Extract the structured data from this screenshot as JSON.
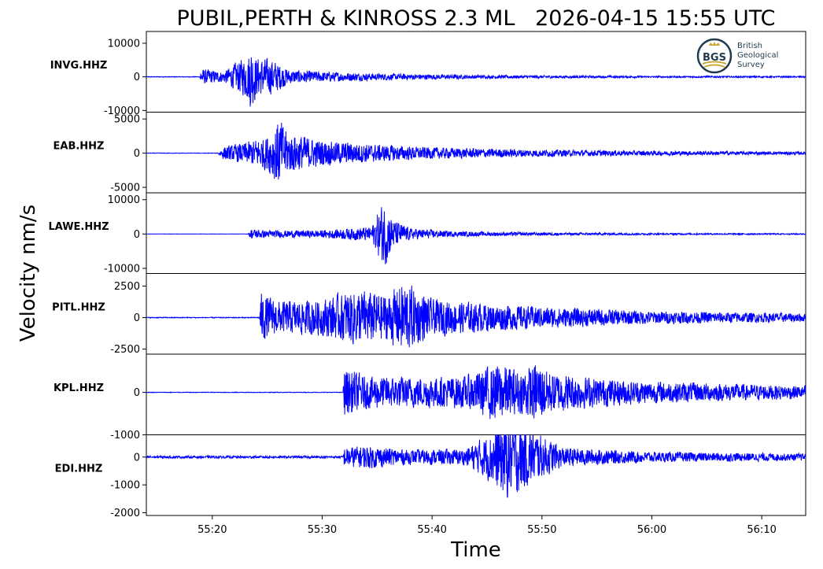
{
  "title": "PUBIL,PERTH & KINROSS 2.3 ML   2026-04-15 15:55 UTC",
  "ylabel": "Velocity nm/s",
  "xlabel": "Time",
  "logo": {
    "abbr": "BGS",
    "line1": "British",
    "line2": "Geological",
    "line3": "Survey"
  },
  "colors": {
    "trace": "#0000ff",
    "axes": "#000000",
    "logo": "#1f3b4d",
    "logo_accent": "#c9a227"
  },
  "chart_data": {
    "type": "line",
    "x_ticks": [
      "55:20",
      "55:30",
      "55:40",
      "55:50",
      "56:00",
      "56:10"
    ],
    "x_tick_seconds": [
      20,
      30,
      40,
      50,
      60,
      70
    ],
    "x_range_seconds": [
      14,
      74
    ],
    "panels": [
      {
        "station": "INVG.HHZ",
        "ylim": [
          -10500,
          13500
        ],
        "yticks": [
          10000,
          0,
          -10000
        ],
        "ytick_labels": [
          "10000",
          "0",
          "-10000"
        ],
        "onset_seconds": 23.3,
        "noise": 120,
        "envelope": [
          [
            18.9,
            2800
          ],
          [
            19.5,
            2600
          ],
          [
            21,
            1800
          ],
          [
            23.3,
            8000
          ],
          [
            23.5,
            12400
          ],
          [
            24,
            7000
          ],
          [
            25.5,
            6000
          ],
          [
            27,
            2500
          ],
          [
            30,
            1800
          ],
          [
            35,
            1200
          ],
          [
            45,
            600
          ],
          [
            60,
            300
          ],
          [
            74,
            250
          ]
        ]
      },
      {
        "station": "EAB.HHZ",
        "ylim": [
          -5800,
          6000
        ],
        "yticks": [
          5000,
          0,
          -5000
        ],
        "ytick_labels": [
          "5000",
          "0",
          "-5000"
        ],
        "noise": 40,
        "envelope": [
          [
            20.6,
            400
          ],
          [
            21,
            1100
          ],
          [
            23,
            1800
          ],
          [
            25,
            3000
          ],
          [
            26.1,
            5800
          ],
          [
            27,
            3500
          ],
          [
            30,
            2200
          ],
          [
            35,
            1500
          ],
          [
            40,
            1000
          ],
          [
            50,
            600
          ],
          [
            60,
            400
          ],
          [
            74,
            250
          ]
        ]
      },
      {
        "station": "LAWE.HHZ",
        "ylim": [
          -11500,
          12000
        ],
        "yticks": [
          10000,
          0,
          -10000
        ],
        "ytick_labels": [
          "10000",
          "0",
          "-10000"
        ],
        "noise": 40,
        "envelope": [
          [
            23.3,
            300
          ],
          [
            23.5,
            1800
          ],
          [
            25,
            1200
          ],
          [
            30,
            1300
          ],
          [
            34.5,
            2500
          ],
          [
            35.6,
            11500
          ],
          [
            36.5,
            5000
          ],
          [
            38,
            2000
          ],
          [
            42,
            900
          ],
          [
            50,
            500
          ],
          [
            60,
            300
          ],
          [
            74,
            200
          ]
        ]
      },
      {
        "station": "PITL.HHZ",
        "ylim": [
          -2900,
          3500
        ],
        "yticks": [
          2500,
          0,
          -2500
        ],
        "ytick_labels": [
          "2500",
          "0",
          "-2500"
        ],
        "noise": 40,
        "envelope": [
          [
            24.3,
            100
          ],
          [
            24.4,
            2300
          ],
          [
            26,
            1500
          ],
          [
            30,
            1700
          ],
          [
            33,
            2600
          ],
          [
            36,
            2200
          ],
          [
            37.5,
            3400
          ],
          [
            40,
            1700
          ],
          [
            45,
            1300
          ],
          [
            50,
            1000
          ],
          [
            60,
            600
          ],
          [
            74,
            400
          ]
        ]
      },
      {
        "station": "KPL.HHZ",
        "ylim": [
          -1000,
          900
        ],
        "yticks": [
          0,
          -1000
        ],
        "ytick_labels": [
          "0",
          "-1000"
        ],
        "noise": 8,
        "envelope": [
          [
            31.9,
            40
          ],
          [
            32,
            700
          ],
          [
            34,
            450
          ],
          [
            38,
            420
          ],
          [
            43,
            450
          ],
          [
            46,
            820
          ],
          [
            48,
            600
          ],
          [
            49.5,
            850
          ],
          [
            51,
            550
          ],
          [
            55,
            400
          ],
          [
            60,
            300
          ],
          [
            74,
            180
          ]
        ]
      },
      {
        "station": "EDI.HHZ",
        "ylim": [
          -2100,
          800
        ],
        "yticks": [
          0,
          -1000,
          -2000
        ],
        "ytick_labels": [
          "0",
          "-1000",
          "-2000"
        ],
        "noise": 50,
        "envelope": [
          [
            31.9,
            60
          ],
          [
            32,
            400
          ],
          [
            34,
            500
          ],
          [
            38,
            300
          ],
          [
            43,
            350
          ],
          [
            45,
            900
          ],
          [
            46.6,
            1800
          ],
          [
            48,
            1500
          ],
          [
            50,
            900
          ],
          [
            52,
            400
          ],
          [
            60,
            220
          ],
          [
            74,
            150
          ]
        ]
      }
    ]
  }
}
